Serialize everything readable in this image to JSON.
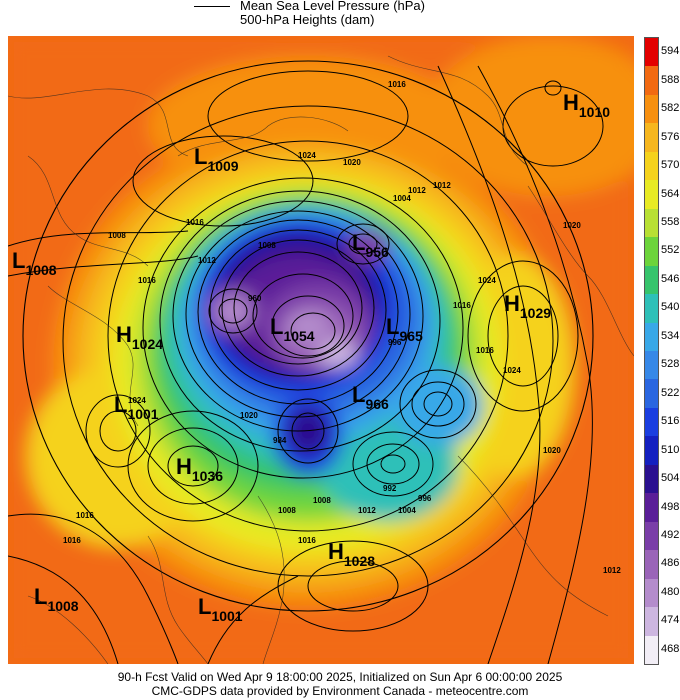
{
  "legend": {
    "line1": "Mean Sea Level Pressure (hPa)",
    "line2": "500-hPa Heights (dam)"
  },
  "colorbar": {
    "labels": [
      "594",
      "588",
      "582",
      "576",
      "570",
      "564",
      "558",
      "552",
      "546",
      "540",
      "534",
      "528",
      "522",
      "516",
      "510",
      "504",
      "498",
      "492",
      "486",
      "480",
      "474",
      "468"
    ],
    "colors": [
      "#e30000",
      "#f26a12",
      "#f79010",
      "#f6b61e",
      "#f5d21c",
      "#e8ea24",
      "#b8e034",
      "#6cd43c",
      "#36c46c",
      "#2ec0b8",
      "#38a8e8",
      "#3688e8",
      "#2a66e0",
      "#1a3ee0",
      "#1420c0",
      "#2a1090",
      "#5a1e98",
      "#7a3ea8",
      "#9a64b8",
      "#b48ccc",
      "#cdb6e0",
      "#f2eef6"
    ]
  },
  "systems": [
    {
      "type": "H",
      "value": "1010"
    },
    {
      "type": "L",
      "value": "1009"
    },
    {
      "type": "L",
      "value": "1008"
    },
    {
      "type": "L",
      "value": "956"
    },
    {
      "type": "H",
      "value": "1029"
    },
    {
      "type": "H",
      "value": "1024"
    },
    {
      "type": "L",
      "value": "1054"
    },
    {
      "type": "L",
      "value": "965"
    },
    {
      "type": "L",
      "value": "1001"
    },
    {
      "type": "L",
      "value": "966"
    },
    {
      "type": "H",
      "value": "1036"
    },
    {
      "type": "H",
      "value": "1028"
    },
    {
      "type": "L",
      "value": "1008"
    },
    {
      "type": "L",
      "value": "1001"
    }
  ],
  "isobar_labels": [
    "1016",
    "1024",
    "1020",
    "1012",
    "1012",
    "1008",
    "1016",
    "1012",
    "1016",
    "1008",
    "1004",
    "1024",
    "1016",
    "1016",
    "1024",
    "1020",
    "1020",
    "1012",
    "1016",
    "1016",
    "1008",
    "1004",
    "1012",
    "1008",
    "992",
    "996",
    "996",
    "960",
    "984",
    "1016",
    "1020",
    "1024"
  ],
  "footer": {
    "line1": "90-h Fcst Valid on Wed Apr  9 18:00:00 2025, Initialized on Sun Apr  6 00:00:00 2025",
    "line2": "CMC-GDPS data provided by Environment Canada - meteocentre.com"
  }
}
